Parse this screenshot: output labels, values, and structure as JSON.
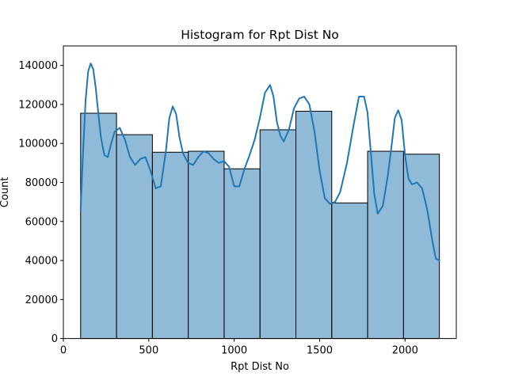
{
  "chart_data": {
    "type": "bar",
    "subtype": "histogram",
    "title": "Histogram for Rpt Dist No",
    "xlabel": "Rpt Dist No",
    "ylabel": "Count",
    "xlim": [
      0,
      2300
    ],
    "ylim": [
      0,
      150000
    ],
    "xticks": [
      0,
      500,
      1000,
      1500,
      2000
    ],
    "yticks": [
      0,
      20000,
      40000,
      60000,
      80000,
      100000,
      120000,
      140000
    ],
    "xtick_labels": [
      "0",
      "500",
      "1000",
      "1500",
      "2000"
    ],
    "ytick_labels": [
      "0",
      "20000",
      "40000",
      "60000",
      "80000",
      "100000",
      "120000",
      "140000"
    ],
    "bin_edges": [
      101,
      311,
      521,
      731,
      941,
      1151,
      1361,
      1571,
      1781,
      1991,
      2201
    ],
    "counts": [
      115500,
      104500,
      95500,
      96000,
      87000,
      107000,
      116500,
      69500,
      96000,
      94500
    ],
    "bar_color": "#1f77b4",
    "bar_opacity": 0.5,
    "edge_color": "#000000",
    "kde": {
      "color": "#1f77b4",
      "x": [
        101,
        115,
        130,
        145,
        160,
        175,
        190,
        205,
        220,
        240,
        260,
        280,
        300,
        330,
        360,
        390,
        420,
        450,
        480,
        510,
        540,
        570,
        600,
        620,
        640,
        660,
        680,
        700,
        730,
        760,
        790,
        820,
        850,
        880,
        910,
        940,
        970,
        1000,
        1030,
        1060,
        1090,
        1120,
        1150,
        1180,
        1210,
        1230,
        1250,
        1270,
        1290,
        1320,
        1350,
        1380,
        1410,
        1440,
        1470,
        1500,
        1530,
        1560,
        1590,
        1620,
        1660,
        1700,
        1730,
        1760,
        1780,
        1800,
        1820,
        1840,
        1870,
        1900,
        1920,
        1940,
        1960,
        1980,
        2000,
        2020,
        2040,
        2070,
        2100,
        2130,
        2160,
        2180,
        2201
      ],
      "y": [
        66000,
        95000,
        122000,
        137000,
        141000,
        138000,
        128000,
        115000,
        103000,
        94000,
        93000,
        100000,
        106000,
        108000,
        102000,
        93000,
        89000,
        92000,
        93000,
        86000,
        77000,
        78000,
        96000,
        113000,
        119000,
        115000,
        103000,
        95000,
        90000,
        89000,
        93000,
        96000,
        95000,
        92000,
        90000,
        91000,
        88000,
        78000,
        78000,
        87000,
        94000,
        102000,
        113000,
        126000,
        130000,
        124000,
        111000,
        104000,
        101000,
        107000,
        118000,
        123000,
        124000,
        120000,
        106000,
        86000,
        72000,
        69000,
        70000,
        75000,
        90000,
        110000,
        124000,
        124000,
        116000,
        95000,
        74000,
        64000,
        68000,
        84000,
        98000,
        113000,
        117000,
        112000,
        94000,
        82000,
        79000,
        80000,
        77000,
        66000,
        50000,
        41000,
        40000
      ]
    }
  }
}
